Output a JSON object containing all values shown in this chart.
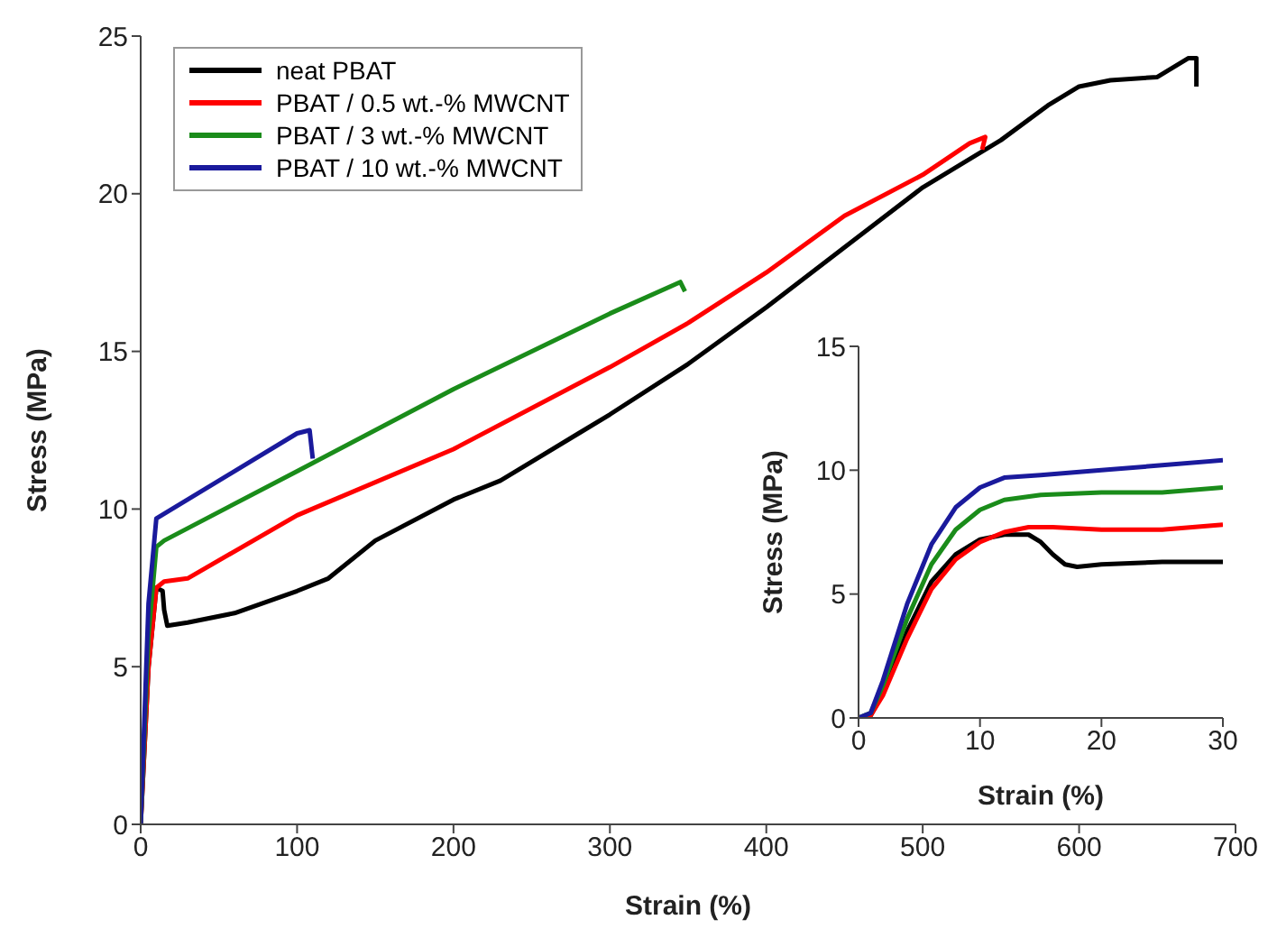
{
  "chart_data": [
    {
      "type": "line",
      "xlabel": "Strain (%)",
      "ylabel": "Stress (MPa)",
      "xlim": [
        0,
        700
      ],
      "xticks": [
        0,
        100,
        200,
        300,
        400,
        500,
        600,
        700
      ],
      "ylim": [
        0,
        25
      ],
      "yticks": [
        0,
        5,
        10,
        15,
        20,
        25
      ],
      "legend": "top left",
      "series": [
        {
          "name": "neat PBAT",
          "color": "#000000",
          "x": [
            0,
            5,
            10,
            14,
            15,
            17,
            30,
            60,
            100,
            120,
            150,
            200,
            230,
            280,
            300,
            350,
            400,
            450,
            500,
            550,
            580,
            600,
            620,
            650,
            670,
            675,
            675
          ],
          "values": [
            0,
            5,
            7.5,
            7.4,
            6.8,
            6.3,
            6.4,
            6.7,
            7.4,
            7.8,
            9,
            10.3,
            10.9,
            12.4,
            13,
            14.6,
            16.4,
            18.3,
            20.2,
            21.7,
            22.8,
            23.4,
            23.6,
            23.7,
            24.3,
            24.3,
            23.4
          ]
        },
        {
          "name": "PBAT / 0.5 wt.-% MWCNT",
          "color": "#ff0000",
          "x": [
            0,
            5,
            10,
            15,
            30,
            100,
            200,
            300,
            350,
            400,
            450,
            500,
            530,
            540,
            538
          ],
          "values": [
            0,
            5,
            7.5,
            7.7,
            7.8,
            9.8,
            11.9,
            14.5,
            15.9,
            17.5,
            19.3,
            20.6,
            21.6,
            21.8,
            21.4
          ]
        },
        {
          "name": "PBAT / 3 wt.-% MWCNT",
          "color": "#1a8c1a",
          "x": [
            0,
            5,
            10,
            15,
            100,
            200,
            300,
            345,
            348
          ],
          "values": [
            0,
            6,
            8.8,
            9,
            11.2,
            13.8,
            16.2,
            17.2,
            16.9
          ]
        },
        {
          "name": "PBAT / 10 wt.-% MWCNT",
          "color": "#1a1a9c",
          "x": [
            0,
            5,
            10,
            20,
            100,
            108,
            110
          ],
          "values": [
            0,
            7,
            9.7,
            10,
            12.4,
            12.5,
            11.6
          ]
        }
      ]
    },
    {
      "type": "line",
      "xlabel": "Strain (%)",
      "ylabel": "Stress (MPa)",
      "xlim": [
        0,
        30
      ],
      "xticks": [
        0,
        10,
        20,
        30
      ],
      "ylim": [
        0,
        15
      ],
      "yticks": [
        0,
        5,
        10,
        15
      ],
      "series": [
        {
          "color": "#000000",
          "x": [
            0,
            1,
            2,
            4,
            6,
            8,
            10,
            12,
            14,
            15,
            16,
            17,
            18,
            20,
            25,
            30
          ],
          "values": [
            0,
            0.1,
            1,
            3.5,
            5.5,
            6.6,
            7.2,
            7.4,
            7.4,
            7.1,
            6.6,
            6.2,
            6.1,
            6.2,
            6.3,
            6.3
          ]
        },
        {
          "color": "#ff0000",
          "x": [
            0,
            1,
            2,
            4,
            6,
            8,
            10,
            12,
            14,
            16,
            20,
            25,
            30
          ],
          "values": [
            0,
            0.1,
            0.9,
            3.2,
            5.2,
            6.4,
            7.1,
            7.5,
            7.7,
            7.7,
            7.6,
            7.6,
            7.8
          ]
        },
        {
          "color": "#1a8c1a",
          "x": [
            0,
            1,
            2,
            4,
            6,
            8,
            10,
            12,
            15,
            20,
            25,
            30
          ],
          "values": [
            0,
            0.2,
            1.3,
            4,
            6.2,
            7.6,
            8.4,
            8.8,
            9,
            9.1,
            9.1,
            9.3
          ]
        },
        {
          "color": "#1a1a9c",
          "x": [
            0,
            1,
            2,
            4,
            6,
            8,
            10,
            12,
            15,
            20,
            25,
            30
          ],
          "values": [
            0,
            0.2,
            1.5,
            4.6,
            7,
            8.5,
            9.3,
            9.7,
            9.8,
            10,
            10.2,
            10.4
          ]
        }
      ]
    }
  ]
}
